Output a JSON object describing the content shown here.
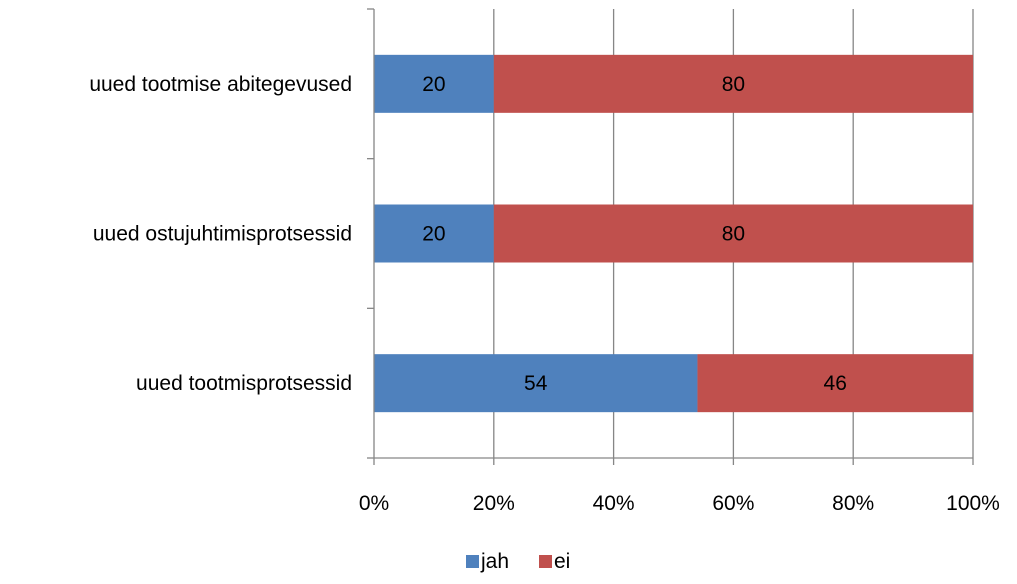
{
  "chart_data": {
    "type": "bar",
    "orientation": "horizontal",
    "stacked": "percent",
    "categories": [
      "uued tootmise abitegevused",
      "uued ostujuhtimisprotsessid",
      "uued tootmisprotsessid"
    ],
    "series": [
      {
        "name": "jah",
        "values": [
          20,
          20,
          54
        ],
        "color": "#4f81bd"
      },
      {
        "name": "ei",
        "values": [
          80,
          80,
          46
        ],
        "color": "#c0504d"
      }
    ],
    "xlim": [
      0,
      100
    ],
    "xticks": [
      "0%",
      "20%",
      "40%",
      "60%",
      "80%",
      "100%"
    ],
    "grid": "vertical",
    "legend": "bottom"
  }
}
